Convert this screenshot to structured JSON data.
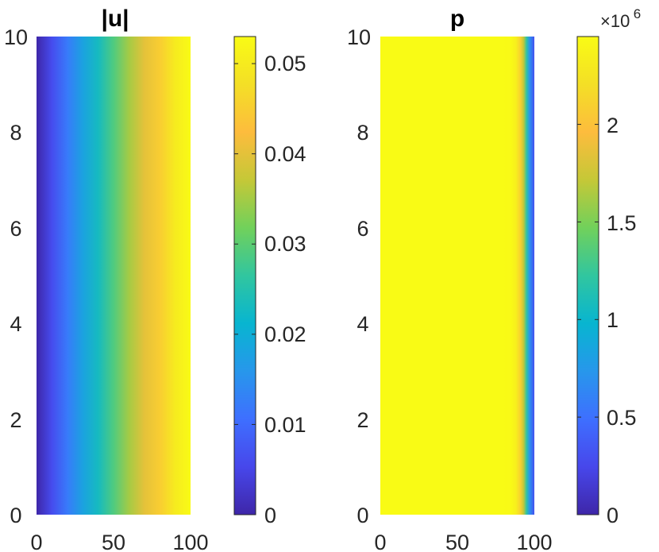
{
  "chart_data": [
    {
      "type": "heatmap",
      "title": "|u|",
      "xlim": [
        0,
        100
      ],
      "ylim": [
        0,
        10
      ],
      "x_ticks": [
        "0",
        "50",
        "100"
      ],
      "y_ticks": [
        "0",
        "2",
        "4",
        "6",
        "8",
        "10"
      ],
      "colormap": "parula",
      "field_variation": "varies along x only",
      "x": [
        0,
        10,
        20,
        30,
        40,
        50,
        60,
        70,
        80,
        90,
        100
      ],
      "values": [
        0.0,
        0.006,
        0.012,
        0.018,
        0.023,
        0.029,
        0.035,
        0.04,
        0.045,
        0.05,
        0.053
      ],
      "colorbar": {
        "range": [
          0,
          0.053
        ],
        "ticks": [
          0,
          0.01,
          0.02,
          0.03,
          0.04,
          0.05
        ],
        "tick_labels": [
          "0",
          "0.01",
          "0.02",
          "0.03",
          "0.04",
          "0.05"
        ]
      }
    },
    {
      "type": "heatmap",
      "title": "p",
      "xlim": [
        0,
        100
      ],
      "ylim": [
        0,
        10
      ],
      "x_ticks": [
        "0",
        "50",
        "100"
      ],
      "y_ticks": [
        "0",
        "2",
        "4",
        "6",
        "8",
        "10"
      ],
      "colormap": "parula",
      "field_variation": "varies along x only",
      "x": [
        0,
        80,
        85,
        88,
        91,
        93,
        95,
        97,
        100
      ],
      "values": [
        2.45,
        2.45,
        2.43,
        2.35,
        2.1,
        1.7,
        1.2,
        0.7,
        0.3
      ],
      "colorbar": {
        "range": [
          0,
          2.45
        ],
        "ticks": [
          0,
          0.5,
          1,
          1.5,
          2
        ],
        "tick_labels": [
          "0",
          "0.5",
          "1",
          "1.5",
          "2"
        ],
        "multiplier_base": "×10",
        "multiplier_exponent": "6"
      }
    }
  ]
}
